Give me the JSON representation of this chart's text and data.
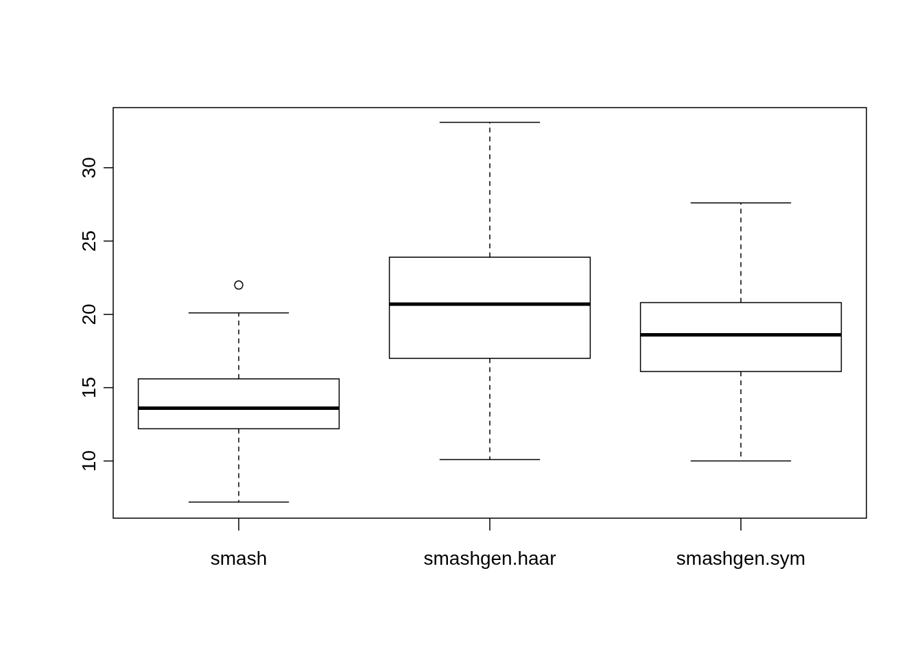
{
  "chart_data": {
    "type": "box",
    "categories": [
      "smash",
      "smashgen.haar",
      "smashgen.sym"
    ],
    "boxes": [
      {
        "low": 7.2,
        "q1": 12.2,
        "median": 13.6,
        "q3": 15.6,
        "high": 20.1,
        "outliers": [
          22.0
        ]
      },
      {
        "low": 10.1,
        "q1": 17.0,
        "median": 20.7,
        "q3": 23.9,
        "high": 33.1
      },
      {
        "low": 10.0,
        "q1": 16.1,
        "median": 18.6,
        "q3": 20.8,
        "high": 27.6
      }
    ],
    "ylim": [
      6.1,
      34.1
    ],
    "yticks": [
      10,
      15,
      20,
      25,
      30
    ],
    "grid": false
  }
}
